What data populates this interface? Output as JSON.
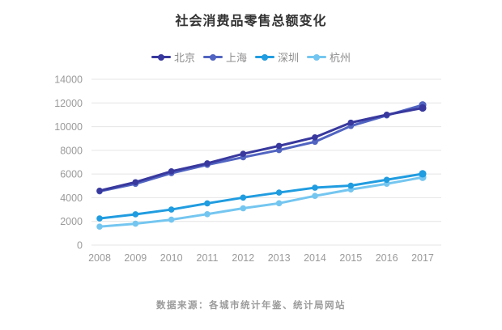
{
  "title": "社会消费品零售总额变化",
  "footer": "数据来源：各城市统计年鉴、统计局网站",
  "chart_data": {
    "type": "line",
    "title": "社会消费品零售总额变化",
    "x": [
      "2008",
      "2009",
      "2010",
      "2011",
      "2012",
      "2013",
      "2014",
      "2015",
      "2016",
      "2017"
    ],
    "series": [
      {
        "id": "beijing",
        "name": "北京",
        "color": "#38389E",
        "values": [
          4589,
          5310,
          6229,
          6900,
          7703,
          8375,
          9098,
          10338,
          11005,
          11575
        ]
      },
      {
        "id": "shanghai",
        "name": "上海",
        "color": "#5164C1",
        "values": [
          4537,
          5173,
          6071,
          6777,
          7412,
          8019,
          8719,
          10056,
          10947,
          11830
        ]
      },
      {
        "id": "shenzhen",
        "name": "深圳",
        "color": "#209CE0",
        "values": [
          2251,
          2598,
          3001,
          3521,
          4009,
          4434,
          4845,
          5018,
          5513,
          6016
        ]
      },
      {
        "id": "hangzhou",
        "name": "杭州",
        "color": "#74C6F0",
        "values": [
          1558,
          1805,
          2146,
          2611,
          3107,
          3529,
          4151,
          4697,
          5176,
          5717
        ]
      }
    ],
    "ylim": [
      0,
      14000
    ],
    "y_ticks": [
      0,
      2000,
      4000,
      6000,
      8000,
      10000,
      12000,
      14000
    ],
    "xlabel": "",
    "ylabel": "",
    "grid": "horizontal",
    "legend_position": "top",
    "grid_color": "#E4E4E4",
    "axis_text_color": "#9A9A9A"
  }
}
